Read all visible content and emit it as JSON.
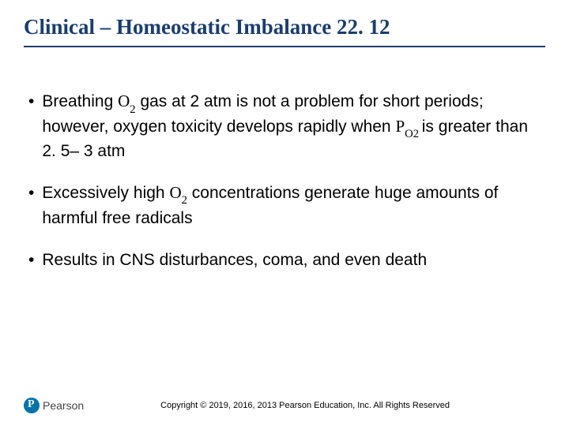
{
  "title": "Clinical – Homeostatic Imbalance 22. 12",
  "title_color": "#1a3d6d",
  "title_fontsize": 27,
  "underline_color": "#1a3d6d",
  "background_color": "#ffffff",
  "bullets": {
    "b1": {
      "pre": "Breathing ",
      "o2": "O",
      "o2sub": "2",
      "mid": " gas at 2 atm is not a problem for short periods; however, oxygen toxicity develops rapidly when ",
      "po2_p": "P",
      "po2_o": "O",
      "po2_sub": "2 ",
      "post": "is greater than 2. 5– 3 atm"
    },
    "b2": {
      "pre": "Excessively high ",
      "o2": "O",
      "o2sub": "2",
      "post": " concentrations generate huge amounts of harmful free radicals"
    },
    "b3": {
      "text": "Results in CNS disturbances, coma, and even death"
    }
  },
  "body_fontsize": 21,
  "body_color": "#000000",
  "logo": {
    "brand": "Pearson",
    "mark_bg": "#0073a8"
  },
  "copyright": "Copyright © 2019, 2016, 2013 Pearson Education, Inc. All Rights Reserved"
}
